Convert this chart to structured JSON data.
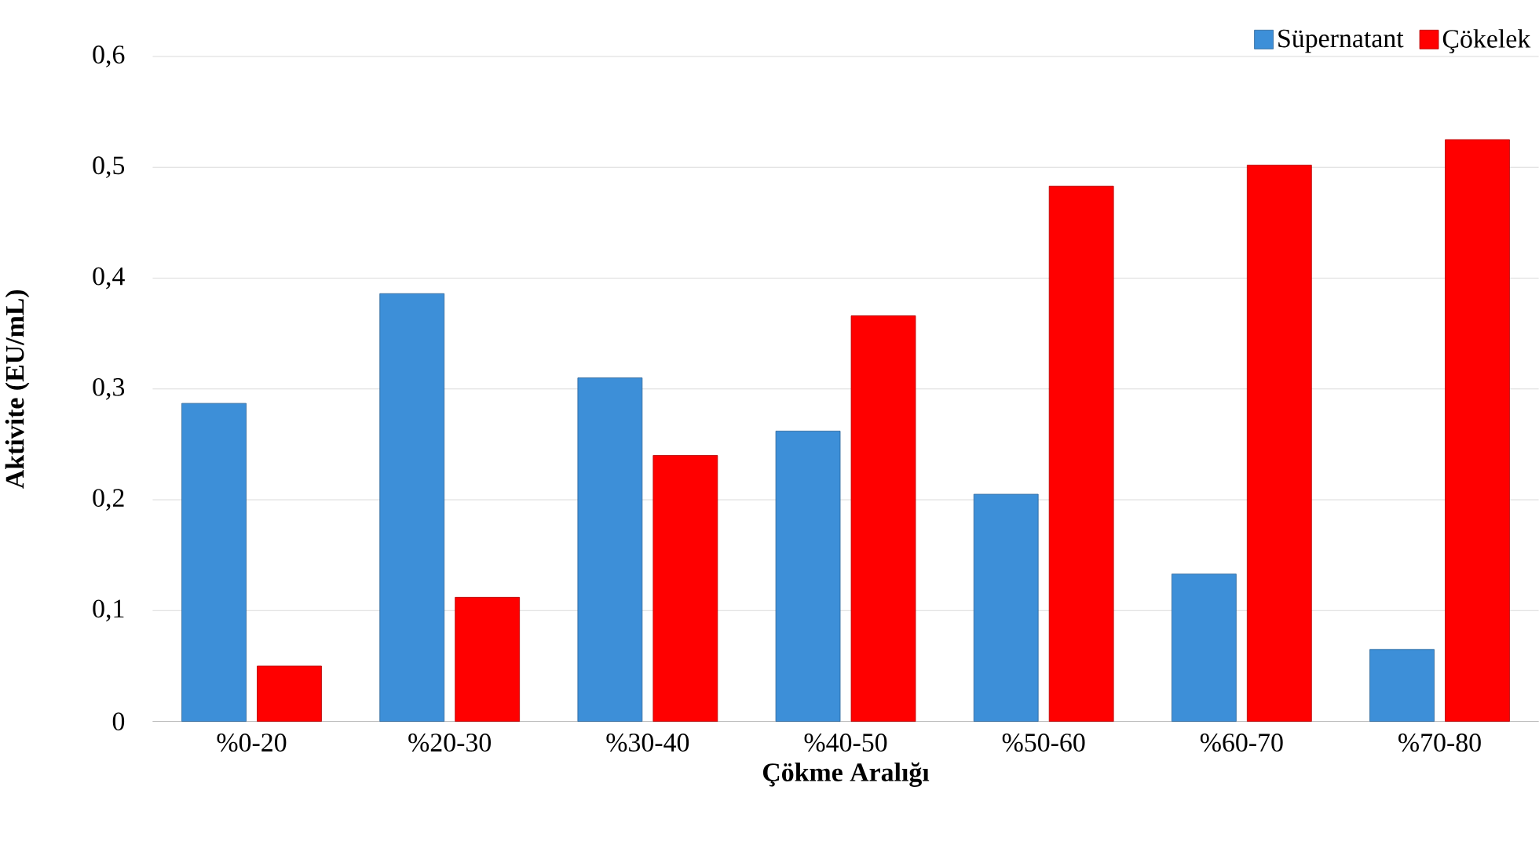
{
  "chart_data": {
    "type": "bar",
    "xlabel": "Çökme Aralığı",
    "ylabel": "Aktivite (EU/mL)",
    "categories": [
      "%0-20",
      "%20-30",
      "%30-40",
      "%40-50",
      "%50-60",
      "%60-70",
      "%70-80"
    ],
    "series": [
      {
        "name": "Süpernatant",
        "color": "#3d8fd8",
        "values": [
          0.287,
          0.386,
          0.31,
          0.262,
          0.205,
          0.133,
          0.065
        ]
      },
      {
        "name": "Çökelek",
        "color": "#ff0000",
        "values": [
          0.05,
          0.112,
          0.24,
          0.366,
          0.483,
          0.502,
          0.525
        ]
      }
    ],
    "ylim": [
      0,
      0.6
    ],
    "yticks": [
      {
        "value": 0,
        "label": "0"
      },
      {
        "value": 0.1,
        "label": "0,1"
      },
      {
        "value": 0.2,
        "label": "0,2"
      },
      {
        "value": 0.3,
        "label": "0,3"
      },
      {
        "value": 0.4,
        "label": "0,4"
      },
      {
        "value": 0.5,
        "label": "0,5"
      },
      {
        "value": 0.6,
        "label": "0,6"
      }
    ],
    "grid": "y",
    "legend": "top right"
  }
}
